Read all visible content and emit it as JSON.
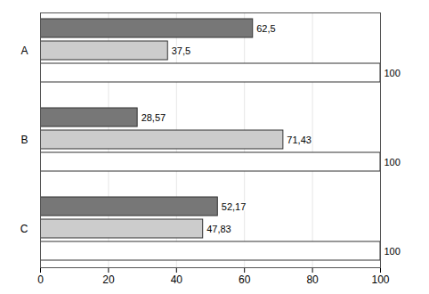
{
  "chart_data": {
    "type": "bar",
    "orientation": "horizontal",
    "categories": [
      "A",
      "B",
      "C"
    ],
    "series": [
      {
        "color": "#777777",
        "values": [
          62.5,
          28.57,
          52.17
        ],
        "value_labels": [
          "62,5",
          "28,57",
          "52,17"
        ]
      },
      {
        "color": "#cccccc",
        "values": [
          37.5,
          71.43,
          47.83
        ],
        "value_labels": [
          "37,5",
          "71,43",
          "47,83"
        ]
      },
      {
        "color": "#ffffff",
        "values": [
          100,
          100,
          100
        ],
        "value_labels": [
          "100",
          "100",
          "100"
        ]
      }
    ],
    "xlim": [
      0,
      100
    ],
    "xticks": [
      0,
      20,
      40,
      60,
      80,
      100
    ],
    "grid": true,
    "data_labels": true
  }
}
